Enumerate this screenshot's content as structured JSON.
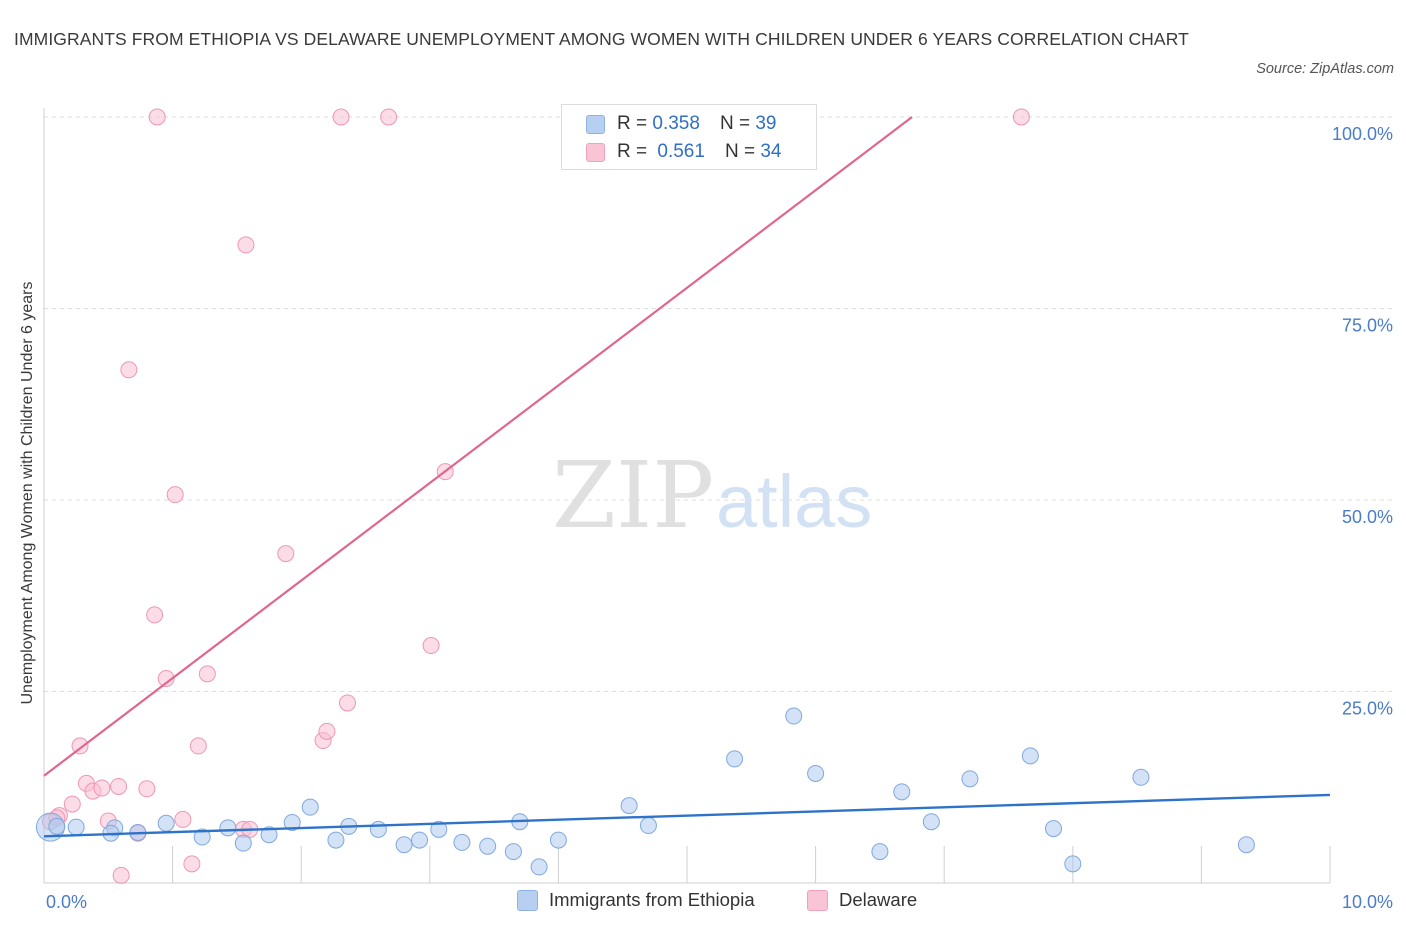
{
  "title": "IMMIGRANTS FROM ETHIOPIA VS DELAWARE UNEMPLOYMENT AMONG WOMEN WITH CHILDREN UNDER 6 YEARS CORRELATION CHART",
  "source": "Source: ZipAtlas.com",
  "watermark": {
    "zip": "ZIP",
    "atlas": "atlas"
  },
  "legend": {
    "rows": [
      {
        "r_label": "R =",
        "r_value": "0.358",
        "n_label": "N =",
        "n_value": "39"
      },
      {
        "r_label": "R =",
        "r_value": "0.561",
        "n_label": "N =",
        "n_value": "34"
      }
    ]
  },
  "colors": {
    "ethiopia_fill": "#aecbf0",
    "ethiopia_stroke": "#7fa8dc",
    "ethiopia_line": "#2f73c9",
    "delaware_fill": "#f9c0d2",
    "delaware_stroke": "#ee97b3",
    "delaware_line": "#e06690",
    "axis_text": "#4a7cc7",
    "grid": "#dddddd"
  },
  "chart_data": {
    "type": "scatter",
    "title": "IMMIGRANTS FROM ETHIOPIA VS DELAWARE UNEMPLOYMENT AMONG WOMEN WITH CHILDREN UNDER 6 YEARS CORRELATION CHART",
    "xlabel": "",
    "ylabel": "Unemployment Among Women with Children Under 6 years",
    "xlim": [
      0,
      10
    ],
    "ylim": [
      0,
      100
    ],
    "x_tick_labels": [
      "0.0%",
      "10.0%"
    ],
    "y_tick_labels": [
      "100.0%",
      "75.0%",
      "50.0%",
      "25.0%"
    ],
    "y_tick_values": [
      100,
      75,
      50,
      25
    ],
    "grid": "horizontal dashed",
    "legend_position": "top-center",
    "series": [
      {
        "name": "Immigrants from Ethiopia",
        "R": 0.358,
        "N": 39,
        "trend": {
          "x": [
            0,
            10
          ],
          "y": [
            6.1,
            11.5
          ]
        },
        "points": [
          [
            0.05,
            7.3
          ],
          [
            0.1,
            7.4
          ],
          [
            0.25,
            7.3
          ],
          [
            0.55,
            7.2
          ],
          [
            0.73,
            6.6
          ],
          [
            0.95,
            7.8
          ],
          [
            1.23,
            6.0
          ],
          [
            1.43,
            7.2
          ],
          [
            1.55,
            5.2
          ],
          [
            1.75,
            6.3
          ],
          [
            1.93,
            7.9
          ],
          [
            2.07,
            9.9
          ],
          [
            2.27,
            5.6
          ],
          [
            2.37,
            7.4
          ],
          [
            2.6,
            7.0
          ],
          [
            2.8,
            5.0
          ],
          [
            2.92,
            5.6
          ],
          [
            3.07,
            7.0
          ],
          [
            3.25,
            5.3
          ],
          [
            3.45,
            4.8
          ],
          [
            3.65,
            4.1
          ],
          [
            3.7,
            8.0
          ],
          [
            3.85,
            2.1
          ],
          [
            4.0,
            5.6
          ],
          [
            4.55,
            10.1
          ],
          [
            4.7,
            7.5
          ],
          [
            5.37,
            16.2
          ],
          [
            5.83,
            21.8
          ],
          [
            6.0,
            14.3
          ],
          [
            6.5,
            4.1
          ],
          [
            6.67,
            11.9
          ],
          [
            6.9,
            8.0
          ],
          [
            7.2,
            13.6
          ],
          [
            7.67,
            16.6
          ],
          [
            7.85,
            7.1
          ],
          [
            8.0,
            2.5
          ],
          [
            8.53,
            13.8
          ],
          [
            9.35,
            5.0
          ],
          [
            0.52,
            6.5
          ]
        ]
      },
      {
        "name": "Delaware",
        "R": 0.561,
        "N": 34,
        "trend": {
          "x": [
            0,
            6.75
          ],
          "y": [
            14.0,
            100
          ]
        },
        "points": [
          [
            0.12,
            8.8
          ],
          [
            0.22,
            10.3
          ],
          [
            0.28,
            17.9
          ],
          [
            0.33,
            13.0
          ],
          [
            0.38,
            12.0
          ],
          [
            0.45,
            12.4
          ],
          [
            0.5,
            8.1
          ],
          [
            0.58,
            12.6
          ],
          [
            0.6,
            1.0
          ],
          [
            0.66,
            67.0
          ],
          [
            0.73,
            6.5
          ],
          [
            0.8,
            12.3
          ],
          [
            0.86,
            35.0
          ],
          [
            0.88,
            100.0
          ],
          [
            0.95,
            26.7
          ],
          [
            1.02,
            50.7
          ],
          [
            1.08,
            8.3
          ],
          [
            1.15,
            2.5
          ],
          [
            1.2,
            17.9
          ],
          [
            1.27,
            27.3
          ],
          [
            1.55,
            7.0
          ],
          [
            1.57,
            83.3
          ],
          [
            1.6,
            7.0
          ],
          [
            1.88,
            43.0
          ],
          [
            2.17,
            18.6
          ],
          [
            2.2,
            19.8
          ],
          [
            2.31,
            100.0
          ],
          [
            2.36,
            23.5
          ],
          [
            2.68,
            100.0
          ],
          [
            3.01,
            31.0
          ],
          [
            3.12,
            53.7
          ],
          [
            7.6,
            100.0
          ],
          [
            0.05,
            8.0
          ],
          [
            0.1,
            8.5
          ]
        ]
      }
    ]
  },
  "bottom_legend": [
    {
      "label": "Immigrants from Ethiopia"
    },
    {
      "label": "Delaware"
    }
  ]
}
